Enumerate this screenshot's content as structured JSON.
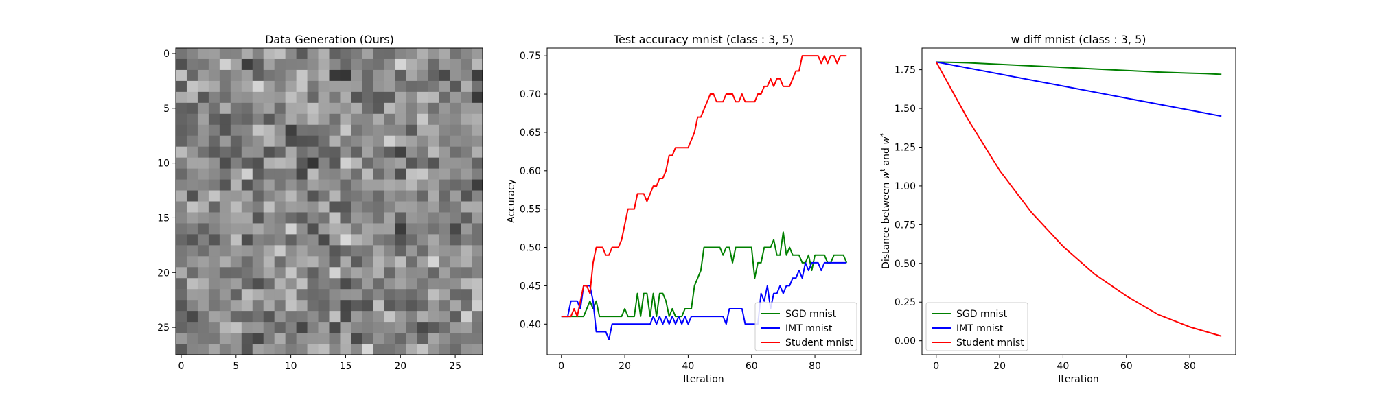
{
  "chart_data": [
    {
      "type": "heatmap",
      "title": "Data Generation (Ours)",
      "xlabel": "",
      "ylabel": "",
      "xlim": [
        -0.5,
        27.5
      ],
      "ylim": [
        27.5,
        -0.5
      ],
      "xticks": [
        0,
        5,
        10,
        15,
        20,
        25
      ],
      "yticks": [
        0,
        5,
        10,
        15,
        20,
        25
      ],
      "colormap": "gray",
      "rows": 28,
      "cols": 28,
      "seed": 7
    },
    {
      "type": "line",
      "title": "Test accuracy mnist (class : 3, 5)",
      "xlabel": "Iteration",
      "ylabel": "Accuracy",
      "xlim": [
        -4.5,
        94.5
      ],
      "ylim": [
        0.36,
        0.76
      ],
      "xticks": [
        0,
        20,
        40,
        60,
        80
      ],
      "yticks": [
        0.4,
        0.45,
        0.5,
        0.55,
        0.6,
        0.65,
        0.7,
        0.75
      ],
      "ytick_decimals": 2,
      "legend": "bottom-right",
      "series": [
        {
          "name": "SGD mnist",
          "color": "#008000",
          "points": [
            [
              0,
              0.41
            ],
            [
              7,
              0.41
            ],
            [
              8,
              0.42
            ],
            [
              9,
              0.43
            ],
            [
              10,
              0.42
            ],
            [
              11,
              0.43
            ],
            [
              12,
              0.41
            ],
            [
              19,
              0.41
            ],
            [
              20,
              0.42
            ],
            [
              21,
              0.41
            ],
            [
              23,
              0.41
            ],
            [
              24,
              0.44
            ],
            [
              25,
              0.41
            ],
            [
              26,
              0.44
            ],
            [
              27,
              0.44
            ],
            [
              28,
              0.41
            ],
            [
              29,
              0.44
            ],
            [
              30,
              0.41
            ],
            [
              31,
              0.44
            ],
            [
              32,
              0.44
            ],
            [
              33,
              0.43
            ],
            [
              34,
              0.41
            ],
            [
              35,
              0.42
            ],
            [
              36,
              0.41
            ],
            [
              38,
              0.41
            ],
            [
              39,
              0.42
            ],
            [
              41,
              0.42
            ],
            [
              42,
              0.45
            ],
            [
              43,
              0.46
            ],
            [
              44,
              0.47
            ],
            [
              45,
              0.5
            ],
            [
              50,
              0.5
            ],
            [
              51,
              0.49
            ],
            [
              52,
              0.5
            ],
            [
              53,
              0.5
            ],
            [
              54,
              0.48
            ],
            [
              55,
              0.5
            ],
            [
              60,
              0.5
            ],
            [
              61,
              0.46
            ],
            [
              62,
              0.48
            ],
            [
              63,
              0.48
            ],
            [
              64,
              0.5
            ],
            [
              66,
              0.5
            ],
            [
              67,
              0.51
            ],
            [
              68,
              0.49
            ],
            [
              69,
              0.49
            ],
            [
              70,
              0.52
            ],
            [
              71,
              0.49
            ],
            [
              72,
              0.5
            ],
            [
              73,
              0.49
            ],
            [
              74,
              0.49
            ],
            [
              75,
              0.49
            ],
            [
              76,
              0.48
            ],
            [
              77,
              0.48
            ],
            [
              78,
              0.49
            ],
            [
              79,
              0.47
            ],
            [
              80,
              0.49
            ],
            [
              83,
              0.49
            ],
            [
              84,
              0.48
            ],
            [
              85,
              0.48
            ],
            [
              86,
              0.49
            ],
            [
              89,
              0.49
            ],
            [
              90,
              0.48
            ]
          ]
        },
        {
          "name": "IMT mnist",
          "color": "#0000ff",
          "points": [
            [
              0,
              0.41
            ],
            [
              2,
              0.41
            ],
            [
              3,
              0.43
            ],
            [
              5,
              0.43
            ],
            [
              6,
              0.42
            ],
            [
              7,
              0.45
            ],
            [
              9,
              0.45
            ],
            [
              10,
              0.43
            ],
            [
              11,
              0.39
            ],
            [
              14,
              0.39
            ],
            [
              15,
              0.38
            ],
            [
              16,
              0.4
            ],
            [
              28,
              0.4
            ],
            [
              29,
              0.41
            ],
            [
              30,
              0.4
            ],
            [
              31,
              0.41
            ],
            [
              32,
              0.4
            ],
            [
              33,
              0.41
            ],
            [
              34,
              0.4
            ],
            [
              35,
              0.41
            ],
            [
              36,
              0.4
            ],
            [
              37,
              0.41
            ],
            [
              38,
              0.4
            ],
            [
              39,
              0.41
            ],
            [
              40,
              0.4
            ],
            [
              41,
              0.41
            ],
            [
              51,
              0.41
            ],
            [
              52,
              0.4
            ],
            [
              53,
              0.42
            ],
            [
              57,
              0.42
            ],
            [
              58,
              0.4
            ],
            [
              60,
              0.4
            ],
            [
              62,
              0.4
            ],
            [
              63,
              0.44
            ],
            [
              64,
              0.43
            ],
            [
              65,
              0.45
            ],
            [
              66,
              0.42
            ],
            [
              67,
              0.44
            ],
            [
              68,
              0.44
            ],
            [
              69,
              0.45
            ],
            [
              70,
              0.44
            ],
            [
              71,
              0.45
            ],
            [
              72,
              0.45
            ],
            [
              73,
              0.46
            ],
            [
              74,
              0.46
            ],
            [
              75,
              0.47
            ],
            [
              76,
              0.46
            ],
            [
              77,
              0.48
            ],
            [
              78,
              0.47
            ],
            [
              79,
              0.48
            ],
            [
              81,
              0.48
            ],
            [
              82,
              0.47
            ],
            [
              83,
              0.48
            ],
            [
              90,
              0.48
            ]
          ]
        },
        {
          "name": "Student mnist",
          "color": "#ff0000",
          "points": [
            [
              0,
              0.41
            ],
            [
              3,
              0.41
            ],
            [
              4,
              0.42
            ],
            [
              5,
              0.41
            ],
            [
              6,
              0.43
            ],
            [
              7,
              0.45
            ],
            [
              8,
              0.45
            ],
            [
              9,
              0.44
            ],
            [
              10,
              0.48
            ],
            [
              11,
              0.5
            ],
            [
              13,
              0.5
            ],
            [
              14,
              0.49
            ],
            [
              15,
              0.49
            ],
            [
              16,
              0.5
            ],
            [
              18,
              0.5
            ],
            [
              19,
              0.51
            ],
            [
              20,
              0.53
            ],
            [
              21,
              0.55
            ],
            [
              23,
              0.55
            ],
            [
              24,
              0.57
            ],
            [
              26,
              0.57
            ],
            [
              27,
              0.56
            ],
            [
              28,
              0.57
            ],
            [
              29,
              0.58
            ],
            [
              30,
              0.58
            ],
            [
              31,
              0.59
            ],
            [
              32,
              0.59
            ],
            [
              33,
              0.6
            ],
            [
              34,
              0.62
            ],
            [
              35,
              0.62
            ],
            [
              36,
              0.63
            ],
            [
              40,
              0.63
            ],
            [
              41,
              0.64
            ],
            [
              42,
              0.65
            ],
            [
              43,
              0.67
            ],
            [
              44,
              0.67
            ],
            [
              45,
              0.68
            ],
            [
              47,
              0.7
            ],
            [
              48,
              0.7
            ],
            [
              49,
              0.69
            ],
            [
              51,
              0.69
            ],
            [
              52,
              0.7
            ],
            [
              54,
              0.7
            ],
            [
              55,
              0.69
            ],
            [
              56,
              0.69
            ],
            [
              57,
              0.7
            ],
            [
              58,
              0.69
            ],
            [
              61,
              0.69
            ],
            [
              62,
              0.7
            ],
            [
              63,
              0.7
            ],
            [
              64,
              0.71
            ],
            [
              65,
              0.71
            ],
            [
              66,
              0.72
            ],
            [
              67,
              0.71
            ],
            [
              68,
              0.72
            ],
            [
              69,
              0.72
            ],
            [
              70,
              0.71
            ],
            [
              72,
              0.71
            ],
            [
              73,
              0.72
            ],
            [
              74,
              0.73
            ],
            [
              75,
              0.73
            ],
            [
              76,
              0.75
            ],
            [
              81,
              0.75
            ],
            [
              82,
              0.74
            ],
            [
              83,
              0.75
            ],
            [
              84,
              0.74
            ],
            [
              85,
              0.75
            ],
            [
              86,
              0.75
            ],
            [
              87,
              0.74
            ],
            [
              88,
              0.75
            ],
            [
              90,
              0.75
            ]
          ]
        }
      ]
    },
    {
      "type": "line",
      "title": "w diff mnist (class : 3, 5)",
      "xlabel": "Iteration",
      "ylabel_parts": [
        "Distance between ",
        "w",
        "t",
        " and ",
        "w",
        "*"
      ],
      "xlim": [
        -4.5,
        94.5
      ],
      "ylim": [
        -0.09,
        1.89
      ],
      "xticks": [
        0,
        20,
        40,
        60,
        80
      ],
      "yticks": [
        0.0,
        0.25,
        0.5,
        0.75,
        1.0,
        1.25,
        1.5,
        1.75
      ],
      "ytick_decimals": 2,
      "legend": "bottom-left",
      "series": [
        {
          "name": "SGD mnist",
          "color": "#008000",
          "points": [
            [
              0,
              1.8
            ],
            [
              10,
              1.795
            ],
            [
              20,
              1.785
            ],
            [
              30,
              1.775
            ],
            [
              40,
              1.765
            ],
            [
              50,
              1.755
            ],
            [
              60,
              1.745
            ],
            [
              70,
              1.735
            ],
            [
              80,
              1.728
            ],
            [
              85,
              1.725
            ],
            [
              90,
              1.72
            ]
          ]
        },
        {
          "name": "IMT mnist",
          "color": "#0000ff",
          "points": [
            [
              0,
              1.8
            ],
            [
              90,
              1.45
            ]
          ]
        },
        {
          "name": "Student mnist",
          "color": "#ff0000",
          "points": [
            [
              0,
              1.8
            ],
            [
              10,
              1.43
            ],
            [
              20,
              1.1
            ],
            [
              30,
              0.83
            ],
            [
              40,
              0.61
            ],
            [
              50,
              0.43
            ],
            [
              60,
              0.29
            ],
            [
              70,
              0.17
            ],
            [
              80,
              0.09
            ],
            [
              90,
              0.03
            ]
          ]
        }
      ]
    }
  ]
}
